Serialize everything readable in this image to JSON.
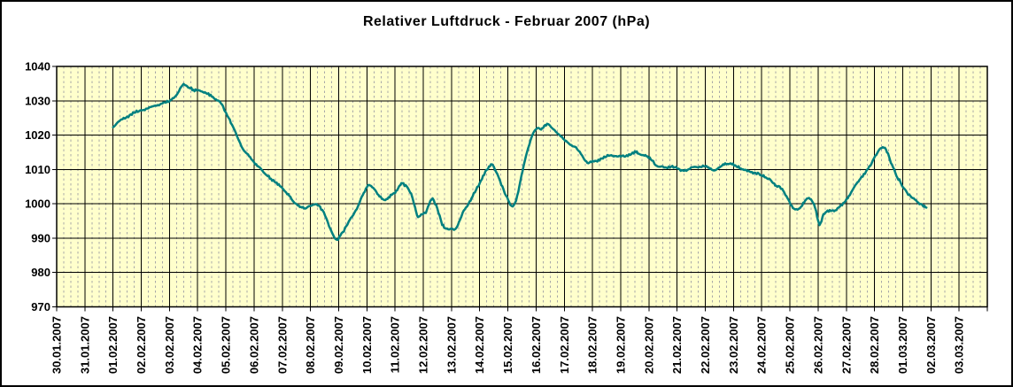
{
  "title": "Relativer Luftdruck - Februar 2007 (hPa)",
  "colors": {
    "background": "#FFFFFF",
    "plot_background": "#FFFFCC",
    "grid_major": "#000000",
    "grid_minor": "#A8A8A8",
    "line": "#008080",
    "border": "#000000",
    "text": "#000000"
  },
  "chart_data": {
    "type": "line",
    "title": "Relativer Luftdruck - Februar 2007 (hPa)",
    "legend": "none",
    "grid": {
      "horizontal": "solid",
      "vertical_major": "solid",
      "vertical_minor": "dashed"
    },
    "y_axis": {
      "min": 970,
      "max": 1040,
      "tick_step": 10,
      "tick_labels": [
        "1040",
        "1030",
        "1020",
        "1010",
        "1000",
        "990",
        "980",
        "970"
      ]
    },
    "x_axis": {
      "minor_divisions_per_day": 4,
      "tick_labels": [
        "30.01.2007",
        "31.01.2007",
        "01.02.2007",
        "02.02.2007",
        "03.02.2007",
        "04.02.2007",
        "05.02.2007",
        "06.02.2007",
        "07.02.2007",
        "08.02.2007",
        "09.02.2007",
        "10.02.2007",
        "11.02.2007",
        "12.02.2007",
        "13.02.2007",
        "14.02.2007",
        "15.02.2007",
        "16.02.2007",
        "17.02.2007",
        "18.02.2007",
        "19.02.2007",
        "20.02.2007",
        "21.02.2007",
        "22.02.2007",
        "23.02.2007",
        "24.02.2007",
        "25.02.2007",
        "26.02.2007",
        "27.02.2007",
        "28.02.2007",
        "01.03.2007",
        "02.03.2007",
        "03.03.2007"
      ]
    },
    "series": [
      {
        "name": "Relativer Luftdruck",
        "color": "#008080",
        "unit": "hPa",
        "t_origin_label": "30.01.2007",
        "points": [
          [
            2.0,
            1022.3
          ],
          [
            2.25,
            1024.3
          ],
          [
            2.5,
            1025.4
          ],
          [
            2.75,
            1026.5
          ],
          [
            3.0,
            1027.2
          ],
          [
            3.25,
            1027.8
          ],
          [
            3.5,
            1028.6
          ],
          [
            3.75,
            1029.2
          ],
          [
            4.0,
            1029.8
          ],
          [
            4.15,
            1030.8
          ],
          [
            4.3,
            1032.3
          ],
          [
            4.42,
            1034.1
          ],
          [
            4.5,
            1034.9
          ],
          [
            4.6,
            1034.4
          ],
          [
            4.7,
            1033.8
          ],
          [
            4.85,
            1033.2
          ],
          [
            5.0,
            1033.1
          ],
          [
            5.15,
            1032.7
          ],
          [
            5.3,
            1032.2
          ],
          [
            5.5,
            1031.2
          ],
          [
            5.65,
            1030.4
          ],
          [
            5.8,
            1029.6
          ],
          [
            5.9,
            1028.4
          ],
          [
            6.0,
            1026.6
          ],
          [
            6.1,
            1025.0
          ],
          [
            6.25,
            1022.5
          ],
          [
            6.4,
            1019.6
          ],
          [
            6.5,
            1017.8
          ],
          [
            6.6,
            1016.0
          ],
          [
            6.75,
            1014.6
          ],
          [
            6.9,
            1013.0
          ],
          [
            7.0,
            1012.1
          ],
          [
            7.15,
            1010.9
          ],
          [
            7.3,
            1009.6
          ],
          [
            7.45,
            1008.3
          ],
          [
            7.6,
            1007.3
          ],
          [
            7.8,
            1006.2
          ],
          [
            7.95,
            1005.0
          ],
          [
            8.1,
            1003.6
          ],
          [
            8.25,
            1002.3
          ],
          [
            8.4,
            1000.6
          ],
          [
            8.55,
            999.5
          ],
          [
            8.7,
            998.9
          ],
          [
            8.8,
            998.6
          ],
          [
            8.9,
            999.1
          ],
          [
            9.0,
            999.4
          ],
          [
            9.08,
            999.7
          ],
          [
            9.18,
            999.9
          ],
          [
            9.3,
            999.5
          ],
          [
            9.42,
            998.2
          ],
          [
            9.52,
            996.5
          ],
          [
            9.62,
            994.5
          ],
          [
            9.7,
            992.8
          ],
          [
            9.8,
            991.0
          ],
          [
            9.88,
            989.8
          ],
          [
            9.95,
            989.5
          ],
          [
            10.05,
            990.6
          ],
          [
            10.15,
            991.8
          ],
          [
            10.26,
            993.4
          ],
          [
            10.36,
            994.9
          ],
          [
            10.47,
            996.2
          ],
          [
            10.57,
            997.6
          ],
          [
            10.68,
            999.2
          ],
          [
            10.78,
            1001.3
          ],
          [
            10.89,
            1003.2
          ],
          [
            11.0,
            1004.8
          ],
          [
            11.07,
            1005.5
          ],
          [
            11.15,
            1005.2
          ],
          [
            11.26,
            1004.3
          ],
          [
            11.41,
            1002.6
          ],
          [
            11.52,
            1001.6
          ],
          [
            11.62,
            1001.1
          ],
          [
            11.73,
            1001.4
          ],
          [
            11.88,
            1002.6
          ],
          [
            12.0,
            1003.1
          ],
          [
            12.15,
            1005.2
          ],
          [
            12.26,
            1006.0
          ],
          [
            12.41,
            1005.1
          ],
          [
            12.57,
            1003.0
          ],
          [
            12.67,
            1000.0
          ],
          [
            12.78,
            996.6
          ],
          [
            12.85,
            996.3
          ],
          [
            13.0,
            997.1
          ],
          [
            13.09,
            997.3
          ],
          [
            13.25,
            1000.9
          ],
          [
            13.33,
            1001.6
          ],
          [
            13.46,
            999.6
          ],
          [
            13.58,
            996.6
          ],
          [
            13.67,
            993.8
          ],
          [
            13.78,
            992.9
          ],
          [
            13.88,
            992.6
          ],
          [
            14.0,
            992.8
          ],
          [
            14.09,
            992.4
          ],
          [
            14.19,
            993.2
          ],
          [
            14.3,
            995.3
          ],
          [
            14.4,
            997.5
          ],
          [
            14.51,
            998.9
          ],
          [
            14.61,
            1000.1
          ],
          [
            14.71,
            1001.6
          ],
          [
            14.87,
            1004.0
          ],
          [
            15.0,
            1006.0
          ],
          [
            15.12,
            1008.2
          ],
          [
            15.24,
            1009.9
          ],
          [
            15.33,
            1010.9
          ],
          [
            15.4,
            1011.5
          ],
          [
            15.5,
            1010.8
          ],
          [
            15.63,
            1008.6
          ],
          [
            15.73,
            1006.5
          ],
          [
            15.84,
            1004.3
          ],
          [
            15.94,
            1002.3
          ],
          [
            16.05,
            1000.4
          ],
          [
            16.13,
            999.4
          ],
          [
            16.21,
            999.6
          ],
          [
            16.29,
            1000.9
          ],
          [
            16.37,
            1003.5
          ],
          [
            16.44,
            1006.5
          ],
          [
            16.52,
            1009.5
          ],
          [
            16.6,
            1012.5
          ],
          [
            16.68,
            1015.1
          ],
          [
            16.76,
            1017.2
          ],
          [
            16.84,
            1019.4
          ],
          [
            16.92,
            1020.9
          ],
          [
            17.0,
            1021.7
          ],
          [
            17.08,
            1022.1
          ],
          [
            17.18,
            1021.6
          ],
          [
            17.28,
            1022.5
          ],
          [
            17.39,
            1023.3
          ],
          [
            17.49,
            1022.8
          ],
          [
            17.65,
            1021.5
          ],
          [
            17.81,
            1020.2
          ],
          [
            17.96,
            1018.9
          ],
          [
            18.1,
            1018.0
          ],
          [
            18.25,
            1017.1
          ],
          [
            18.38,
            1016.6
          ],
          [
            18.59,
            1014.5
          ],
          [
            18.75,
            1012.5
          ],
          [
            18.85,
            1011.8
          ],
          [
            19.01,
            1012.5
          ],
          [
            19.17,
            1012.3
          ],
          [
            19.33,
            1013.2
          ],
          [
            19.54,
            1014.2
          ],
          [
            19.75,
            1013.8
          ],
          [
            19.96,
            1014.0
          ],
          [
            20.17,
            1013.8
          ],
          [
            20.38,
            1014.5
          ],
          [
            20.5,
            1015.3
          ],
          [
            20.64,
            1014.6
          ],
          [
            20.8,
            1014.2
          ],
          [
            20.95,
            1013.8
          ],
          [
            21.11,
            1012.6
          ],
          [
            21.24,
            1011.2
          ],
          [
            21.37,
            1010.8
          ],
          [
            21.58,
            1010.6
          ],
          [
            21.79,
            1010.8
          ],
          [
            22.0,
            1010.3
          ],
          [
            22.21,
            1009.7
          ],
          [
            22.37,
            1009.9
          ],
          [
            22.58,
            1010.7
          ],
          [
            22.79,
            1010.8
          ],
          [
            23.0,
            1010.9
          ],
          [
            23.19,
            1010.3
          ],
          [
            23.31,
            1009.7
          ],
          [
            23.47,
            1010.5
          ],
          [
            23.63,
            1011.5
          ],
          [
            23.78,
            1011.6
          ],
          [
            23.94,
            1011.5
          ],
          [
            24.1,
            1010.9
          ],
          [
            24.26,
            1010.3
          ],
          [
            24.41,
            1009.9
          ],
          [
            24.57,
            1009.4
          ],
          [
            24.78,
            1009.0
          ],
          [
            24.99,
            1008.3
          ],
          [
            25.14,
            1007.7
          ],
          [
            25.3,
            1007.1
          ],
          [
            25.41,
            1006.0
          ],
          [
            25.51,
            1005.3
          ],
          [
            25.64,
            1005.0
          ],
          [
            25.77,
            1003.7
          ],
          [
            25.91,
            1001.7
          ],
          [
            26.03,
            999.6
          ],
          [
            26.14,
            998.6
          ],
          [
            26.27,
            998.3
          ],
          [
            26.4,
            999.2
          ],
          [
            26.54,
            1000.9
          ],
          [
            26.64,
            1001.6
          ],
          [
            26.75,
            1001.3
          ],
          [
            26.85,
            1000.0
          ],
          [
            26.93,
            997.9
          ],
          [
            27.0,
            995.1
          ],
          [
            27.05,
            993.8
          ],
          [
            27.12,
            994.9
          ],
          [
            27.19,
            997.0
          ],
          [
            27.3,
            997.7
          ],
          [
            27.45,
            997.9
          ],
          [
            27.61,
            998.1
          ],
          [
            27.77,
            999.2
          ],
          [
            27.93,
            1000.4
          ],
          [
            28.09,
            1002.3
          ],
          [
            28.24,
            1004.3
          ],
          [
            28.4,
            1006.3
          ],
          [
            28.5,
            1007.3
          ],
          [
            28.66,
            1008.7
          ],
          [
            28.78,
            1010.3
          ],
          [
            28.89,
            1011.6
          ],
          [
            28.99,
            1013.4
          ],
          [
            29.1,
            1014.8
          ],
          [
            29.18,
            1015.9
          ],
          [
            29.29,
            1016.5
          ],
          [
            29.37,
            1016.3
          ],
          [
            29.44,
            1015.0
          ],
          [
            29.52,
            1013.6
          ],
          [
            29.58,
            1011.9
          ],
          [
            29.66,
            1010.6
          ],
          [
            29.74,
            1009.0
          ],
          [
            29.81,
            1007.6
          ],
          [
            29.92,
            1006.3
          ],
          [
            30.02,
            1004.7
          ],
          [
            30.15,
            1003.3
          ],
          [
            30.28,
            1002.2
          ],
          [
            30.42,
            1001.3
          ],
          [
            30.56,
            1000.3
          ],
          [
            30.7,
            999.6
          ],
          [
            30.84,
            998.9
          ]
        ]
      }
    ]
  }
}
